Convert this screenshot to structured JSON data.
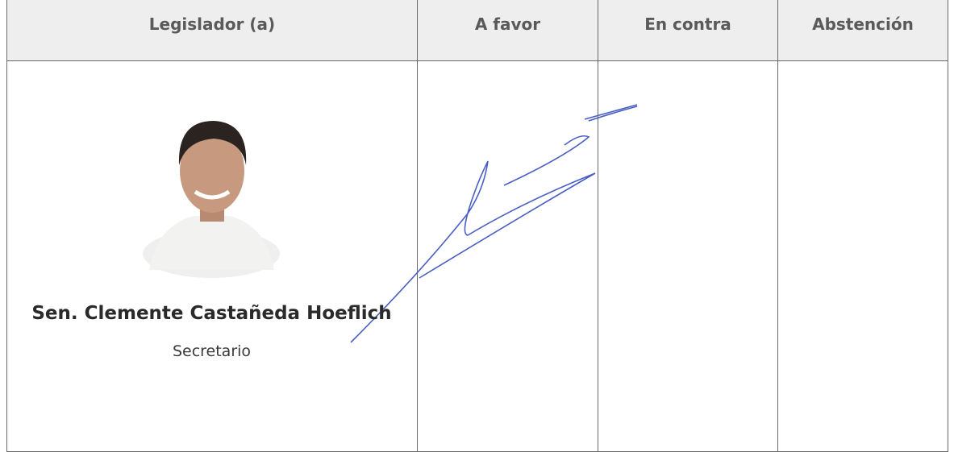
{
  "table": {
    "columns": [
      "Legislador (a)",
      "A favor",
      "En contra",
      "Abstención"
    ],
    "rows": [
      {
        "name": "Sen. Clemente Castañeda Hoeflich",
        "role": "Secretario"
      }
    ]
  }
}
